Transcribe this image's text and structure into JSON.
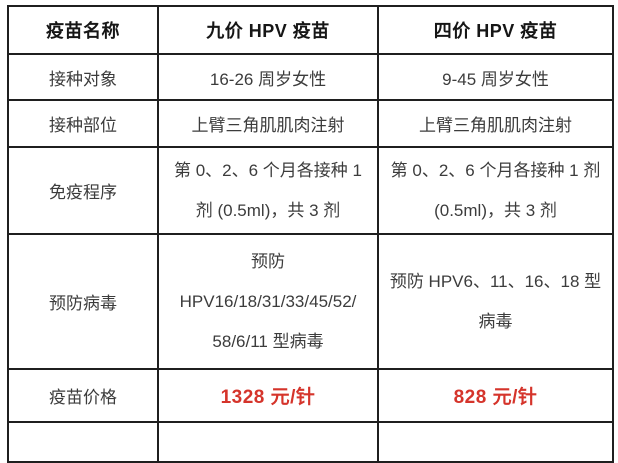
{
  "colors": {
    "border": "#1f1f1f",
    "body_text": "#3c3c3c",
    "header_text": "#161616",
    "price": "#d5342b",
    "page_bg": "#ffffff"
  },
  "table": {
    "header": {
      "vaccine_name": "疫苗名称",
      "nine_valent": "九价 HPV 疫苗",
      "four_valent": "四价 HPV 疫苗"
    },
    "rows": {
      "target": {
        "label": "接种对象",
        "nine": "16-26 周岁女性",
        "four": "9-45 周岁女性"
      },
      "site": {
        "label": "接种部位",
        "nine": "上臂三角肌肌肉注射",
        "four": "上臂三角肌肌肉注射"
      },
      "schedule": {
        "label": "免疫程序",
        "nine_lines": [
          "第 0、2、6 个月各接种 1",
          "剂 (0.5ml)，共 3 剂"
        ],
        "four_lines": [
          "第 0、2、6 个月各接种 1 剂",
          "(0.5ml)，共 3 剂"
        ]
      },
      "virus": {
        "label": "预防病毒",
        "nine_lines": [
          "预防",
          "HPV16/18/31/33/45/52/",
          "58/6/11 型病毒"
        ],
        "four_lines": [
          "预防 HPV6、11、16、18 型",
          "病毒"
        ]
      },
      "price": {
        "label": "疫苗价格",
        "nine": "1328 元/针",
        "four": "828 元/针"
      }
    }
  }
}
